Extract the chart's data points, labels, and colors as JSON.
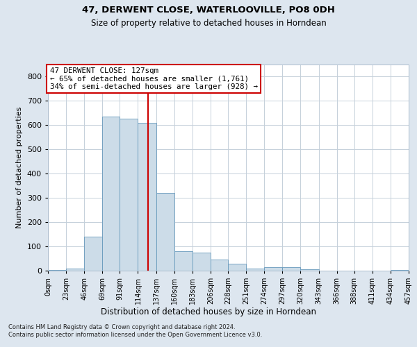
{
  "title1": "47, DERWENT CLOSE, WATERLOOVILLE, PO8 0DH",
  "title2": "Size of property relative to detached houses in Horndean",
  "xlabel": "Distribution of detached houses by size in Horndean",
  "ylabel": "Number of detached properties",
  "footnote": "Contains HM Land Registry data © Crown copyright and database right 2024.\nContains public sector information licensed under the Open Government Licence v3.0.",
  "bin_edges": [
    0,
    23,
    46,
    69,
    91,
    114,
    137,
    160,
    183,
    206,
    228,
    251,
    274,
    297,
    320,
    343,
    366,
    388,
    411,
    434,
    457
  ],
  "bar_heights": [
    2,
    10,
    140,
    635,
    625,
    610,
    320,
    80,
    75,
    45,
    30,
    10,
    15,
    15,
    5,
    0,
    0,
    0,
    0,
    2
  ],
  "bar_color": "#ccdce8",
  "bar_edge_color": "#6699bb",
  "property_line_x": 127,
  "property_line_color": "#cc0000",
  "ylim": [
    0,
    850
  ],
  "yticks": [
    0,
    100,
    200,
    300,
    400,
    500,
    600,
    700,
    800
  ],
  "annotation_text": "47 DERWENT CLOSE: 127sqm\n← 65% of detached houses are smaller (1,761)\n34% of semi-detached houses are larger (928) →",
  "annotation_box_color": "#ffffff",
  "annotation_box_edge": "#cc0000",
  "bg_color": "#dde6ef",
  "plot_bg": "#ffffff",
  "grid_color": "#c5d0da"
}
